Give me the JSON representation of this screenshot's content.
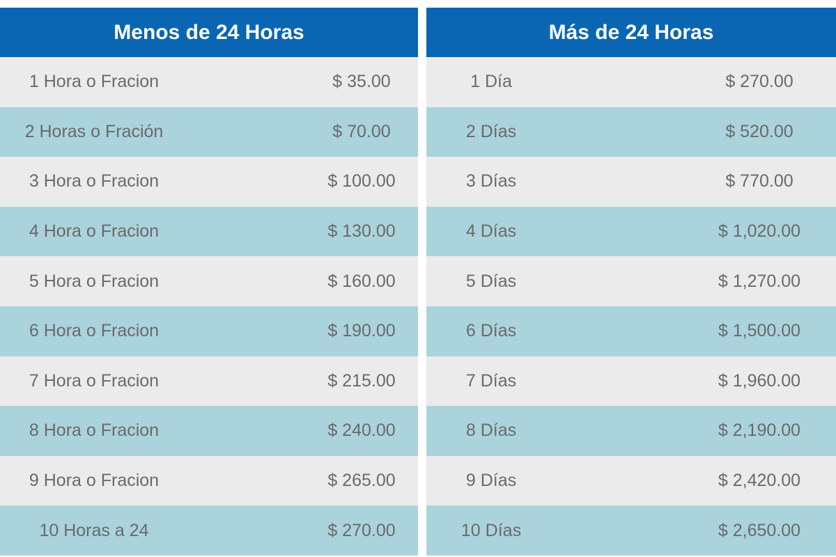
{
  "tables": [
    {
      "title": "Menos de 24 Horas",
      "rows": [
        [
          "1 Hora o Fracion",
          "$ 35.00"
        ],
        [
          "2 Horas o Fración",
          "$ 70.00"
        ],
        [
          "3 Hora o Fracion",
          "$ 100.00"
        ],
        [
          "4 Hora o Fracion",
          "$ 130.00"
        ],
        [
          "5 Hora o Fracion",
          "$ 160.00"
        ],
        [
          "6 Hora o Fracion",
          "$ 190.00"
        ],
        [
          "7 Hora o Fracion",
          "$ 215.00"
        ],
        [
          "8 Hora o Fracion",
          "$ 240.00"
        ],
        [
          "9 Hora o Fracion",
          "$ 265.00"
        ],
        [
          "10 Horas a 24",
          "$ 270.00"
        ]
      ]
    },
    {
      "title": "Más de 24 Horas",
      "rows": [
        [
          "1 Día",
          "$ 270.00"
        ],
        [
          "2 Días",
          "$ 520.00"
        ],
        [
          "3 Días",
          "$ 770.00"
        ],
        [
          "4 Días",
          "$ 1,020.00"
        ],
        [
          "5 Días",
          "$ 1,270.00"
        ],
        [
          "6 Días",
          "$ 1,500.00"
        ],
        [
          "7 Días",
          "$ 1,960.00"
        ],
        [
          "8 Días",
          "$ 2,190.00"
        ],
        [
          "9 Días",
          "$ 2,420.00"
        ],
        [
          "10 Días",
          "$ 2,650.00"
        ]
      ]
    }
  ]
}
